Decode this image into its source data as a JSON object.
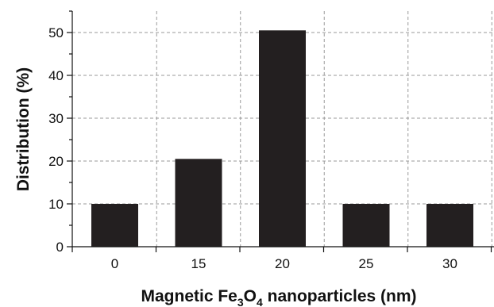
{
  "chart_data": {
    "type": "bar",
    "categories": [
      "0",
      "15",
      "20",
      "25",
      "30"
    ],
    "values": [
      10,
      20.5,
      50.5,
      10,
      10
    ],
    "xlabel": {
      "prefix": "Magnetic Fe",
      "sub1": "3",
      "mid": "O",
      "sub2": "4",
      "suffix": " nanoparticles (nm)"
    },
    "ylabel": "Distribution (%)",
    "ylim": [
      0,
      55
    ],
    "y_ticks": [
      0,
      10,
      20,
      30,
      40,
      50
    ],
    "grid": true,
    "bar_color": "#231f20",
    "grid_color": "#9a9a9a"
  }
}
